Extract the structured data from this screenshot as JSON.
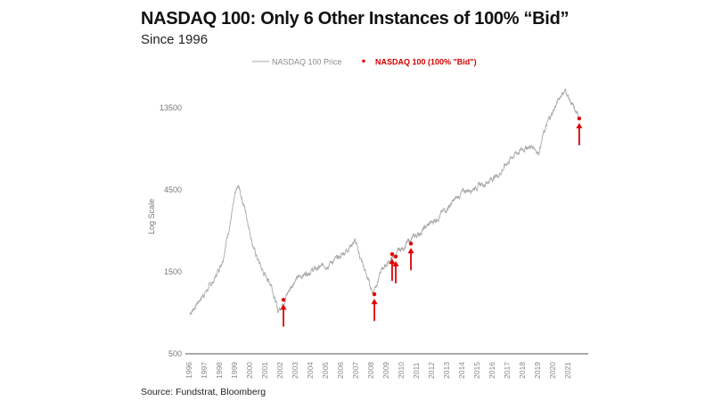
{
  "chart_data": {
    "type": "line",
    "title": "NASDAQ 100: Only 6 Other Instances of 100% “Bid”",
    "subtitle": "Since 1996",
    "source": "Source: Fundstrat, Bloomberg",
    "ylabel": "Log Scale",
    "xlabel": "",
    "yscale": "log",
    "ylim": [
      500,
      20000
    ],
    "yticks": [
      500,
      1500,
      4500,
      13500
    ],
    "ytick_labels": [
      "500",
      "1500",
      "4500",
      "13500"
    ],
    "xlim": [
      1996,
      2022
    ],
    "xticks": [
      "1996",
      "1997",
      "1998",
      "1999",
      "2000",
      "2001",
      "2002",
      "2003",
      "2004",
      "2005",
      "2006",
      "2007",
      "2008",
      "2009",
      "2010",
      "2011",
      "2012",
      "2013",
      "2014",
      "2015",
      "2016",
      "2017",
      "2018",
      "2019",
      "2020",
      "2021"
    ],
    "grid": false,
    "legend_position": "top-center",
    "colors": {
      "price": "#a8a8a8",
      "bid": "#e00000",
      "legend_bid_text": "#d40000"
    },
    "series": [
      {
        "name": "NASDAQ 100 Price",
        "x": [
          1996.06,
          1996.76,
          1997.65,
          1998.24,
          1998.71,
          1999.12,
          1999.29,
          1999.71,
          2000.29,
          2000.88,
          2001.47,
          2001.88,
          2002.24,
          2002.94,
          2003.82,
          2004.71,
          2005.88,
          2006.94,
          2007.53,
          2008.12,
          2008.82,
          2009.71,
          2010.59,
          2011.47,
          2012.65,
          2014.12,
          2015.59,
          2016.47,
          2017.35,
          2018.24,
          2018.82,
          2019.06,
          2019.41,
          2019.76,
          2020.59,
          2020.88,
          2021.47,
          2021.76
        ],
        "y": [
          855,
          1050,
          1330,
          1795,
          2890,
          4390,
          4660,
          3460,
          2020,
          1500,
          1255,
          876,
          1012,
          1330,
          1500,
          1592,
          1795,
          2280,
          1592,
          1140,
          1592,
          1904,
          2280,
          2630,
          3260,
          4390,
          4950,
          5580,
          7080,
          7990,
          7990,
          7400,
          9500,
          11500,
          16350,
          16940,
          12870,
          11700
        ]
      },
      {
        "name": "NASDAQ 100 (100% \"Bid\")",
        "type": "scatter",
        "x": [
          2002.24,
          2008.24,
          2009.41,
          2009.65,
          2010.65,
          2021.76
        ],
        "y": [
          1030,
          1110,
          1900,
          1840,
          2190,
          11700
        ]
      }
    ]
  }
}
